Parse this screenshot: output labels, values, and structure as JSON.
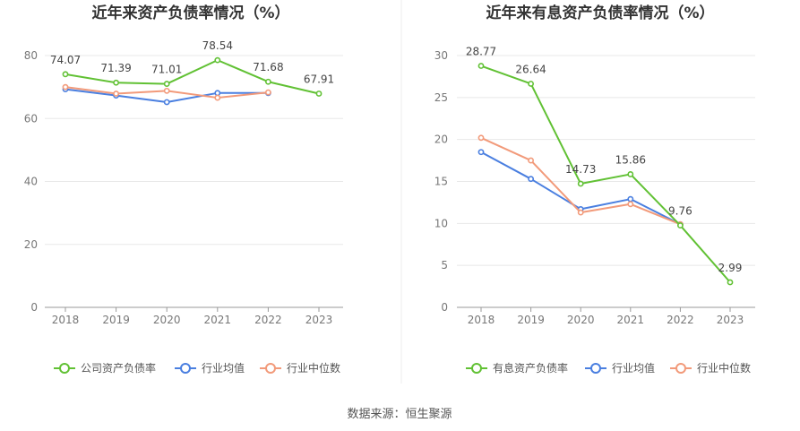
{
  "source": "数据来源：恒生聚源",
  "colors": {
    "company": "#61c134",
    "avg": "#4a7fe0",
    "median": "#f29a7a"
  },
  "chart_data": [
    {
      "type": "line",
      "title": "近年来资产负债率情况（%）",
      "categories": [
        "2018",
        "2019",
        "2020",
        "2021",
        "2022",
        "2023"
      ],
      "ylim": [
        0,
        80
      ],
      "yticks": [
        0,
        20,
        40,
        60,
        80
      ],
      "grid": true,
      "legend_position": "bottom",
      "series": [
        {
          "name": "公司资产负债率",
          "key": "company",
          "values": [
            74.07,
            71.39,
            71.01,
            78.54,
            71.68,
            67.91
          ],
          "labels": [
            "74.07",
            "71.39",
            "71.01",
            "78.54",
            "71.68",
            "67.91"
          ]
        },
        {
          "name": "行业均值",
          "key": "avg",
          "values": [
            69.3,
            67.3,
            65.2,
            68.1,
            68.1,
            null
          ]
        },
        {
          "name": "行业中位数",
          "key": "median",
          "values": [
            70.0,
            67.9,
            68.8,
            66.6,
            68.3,
            null
          ]
        }
      ]
    },
    {
      "type": "line",
      "title": "近年来有息资产负债率情况（%）",
      "categories": [
        "2018",
        "2019",
        "2020",
        "2021",
        "2022",
        "2023"
      ],
      "ylim": [
        0,
        30
      ],
      "yticks": [
        0,
        5,
        10,
        15,
        20,
        25,
        30
      ],
      "grid": true,
      "legend_position": "bottom",
      "series": [
        {
          "name": "有息资产负债率",
          "key": "company",
          "values": [
            28.77,
            26.64,
            14.73,
            15.86,
            9.76,
            2.99
          ],
          "labels": [
            "28.77",
            "26.64",
            "14.73",
            "15.86",
            "9.76",
            "2.99"
          ]
        },
        {
          "name": "行业均值",
          "key": "avg",
          "values": [
            18.5,
            15.3,
            11.7,
            12.9,
            9.9,
            null
          ]
        },
        {
          "name": "行业中位数",
          "key": "median",
          "values": [
            20.2,
            17.5,
            11.3,
            12.3,
            9.9,
            null
          ]
        }
      ]
    }
  ]
}
